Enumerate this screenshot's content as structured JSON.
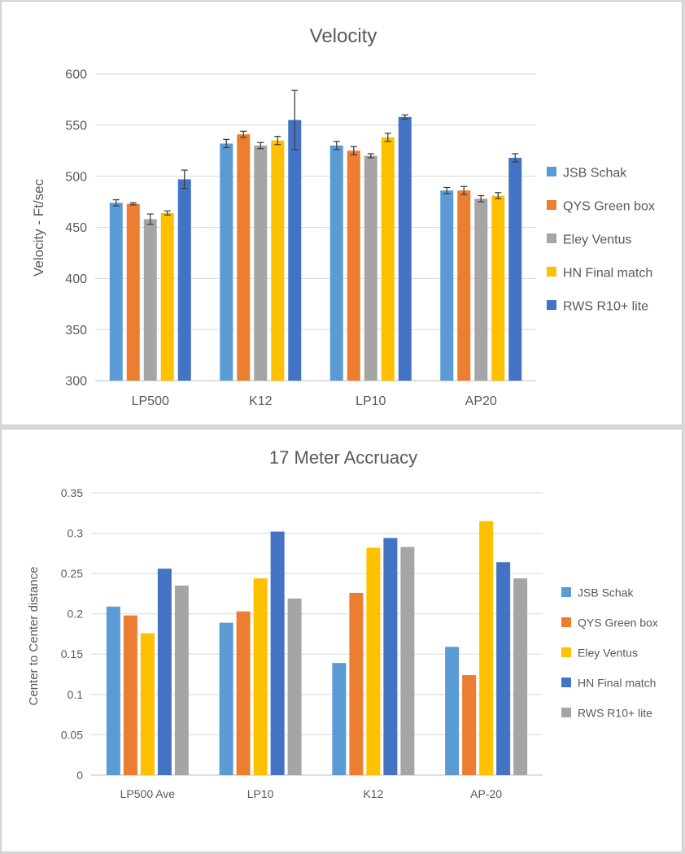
{
  "chart_data": [
    {
      "type": "bar",
      "title": "Velocity",
      "xlabel": "",
      "ylabel": "Velocity - Ft/sec",
      "ylim": [
        300,
        600
      ],
      "yticks": [
        300,
        350,
        400,
        450,
        500,
        550,
        600
      ],
      "grid": true,
      "legend_position": "right",
      "categories": [
        "LP500",
        "K12",
        "LP10",
        "AP20"
      ],
      "series": [
        {
          "name": "JSB Schak",
          "color": "#5b9bd5",
          "values": [
            474,
            532,
            530,
            486
          ],
          "errors": [
            3,
            4,
            4,
            3
          ]
        },
        {
          "name": "QYS Green box",
          "color": "#ed7d31",
          "values": [
            473,
            541,
            525,
            486
          ],
          "errors": [
            1,
            3,
            4,
            4
          ]
        },
        {
          "name": "Eley Ventus",
          "color": "#a5a5a5",
          "values": [
            458,
            530,
            520,
            478
          ],
          "errors": [
            5,
            3,
            2,
            3
          ]
        },
        {
          "name": "HN Final match",
          "color": "#ffc000",
          "values": [
            464,
            535,
            538,
            481
          ],
          "errors": [
            2,
            4,
            4,
            3
          ]
        },
        {
          "name": "RWS R10+ lite",
          "color": "#4472c4",
          "values": [
            497,
            555,
            558,
            518
          ],
          "errors": [
            9,
            29,
            2,
            4
          ]
        }
      ]
    },
    {
      "type": "bar",
      "title": "17 Meter Accruacy",
      "xlabel": "",
      "ylabel": "Center to Center distance",
      "ylim": [
        0,
        0.35
      ],
      "yticks": [
        "0",
        "0.05",
        "0.1",
        "0.15",
        "0.2",
        "0.25",
        "0.3",
        "0.35"
      ],
      "grid": true,
      "legend_position": "right",
      "categories": [
        "LP500 Ave",
        "LP10",
        "K12",
        "AP-20"
      ],
      "series": [
        {
          "name": "JSB Schak",
          "color": "#5b9bd5",
          "values": [
            0.209,
            0.189,
            0.139,
            0.159
          ]
        },
        {
          "name": "QYS Green box",
          "color": "#ed7d31",
          "values": [
            0.198,
            0.203,
            0.226,
            0.124
          ]
        },
        {
          "name": "Eley Ventus",
          "color": "#ffc000",
          "values": [
            0.176,
            0.244,
            0.282,
            0.315
          ]
        },
        {
          "name": "HN Final match",
          "color": "#4472c4",
          "values": [
            0.256,
            0.302,
            0.294,
            0.264
          ]
        },
        {
          "name": "RWS R10+ lite",
          "color": "#a5a5a5",
          "values": [
            0.235,
            0.219,
            0.283,
            0.244
          ]
        }
      ]
    }
  ]
}
